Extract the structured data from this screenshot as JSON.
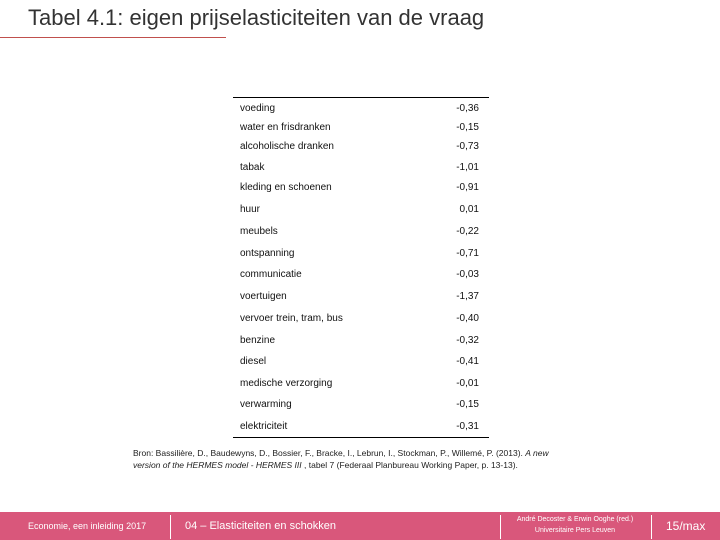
{
  "header": {
    "title": "Tabel 4.1: eigen prijselasticiteiten van de vraag"
  },
  "table": {
    "rows": [
      [
        "voeding",
        "-0,36"
      ],
      [
        "water en frisdranken",
        "-0,15"
      ],
      [
        "alcoholische dranken",
        "-0,73"
      ],
      [
        "tabak",
        "-1,01"
      ],
      [
        "kleding en schoenen",
        "-0,91"
      ],
      [
        "huur",
        "0,01"
      ],
      [
        "meubels",
        "-0,22"
      ],
      [
        "ontspanning",
        "-0,71"
      ],
      [
        "communicatie",
        "-0,03"
      ],
      [
        "voertuigen",
        "-1,37"
      ],
      [
        "vervoer trein, tram, bus",
        "-0,40"
      ],
      [
        "benzine",
        "-0,32"
      ],
      [
        "diesel",
        "-0,41"
      ],
      [
        "medische verzorging",
        "-0,01"
      ],
      [
        "verwarming",
        "-0,15"
      ],
      [
        "elektriciteit",
        "-0,31"
      ]
    ]
  },
  "source": {
    "prefix": "Bron: Bassilière, D., Baudewyns, D., Bossier, F., Bracke, I., Lebrun, I., Stockman, P., Willemé, P. (2013). ",
    "italic": "A new version of the HERMES model - HERMES III",
    "suffix": " , tabel 7 (Federaal Planbureau Working Paper, p. 13-13)."
  },
  "footer": {
    "left": "Economie, een inleiding 2017",
    "center": "04 – Elasticiteiten en schokken",
    "authors": "André Decoster & Erwin Ooghe (red.)",
    "publisher": "Universitaire Pers Leuven",
    "page": "15/max"
  }
}
